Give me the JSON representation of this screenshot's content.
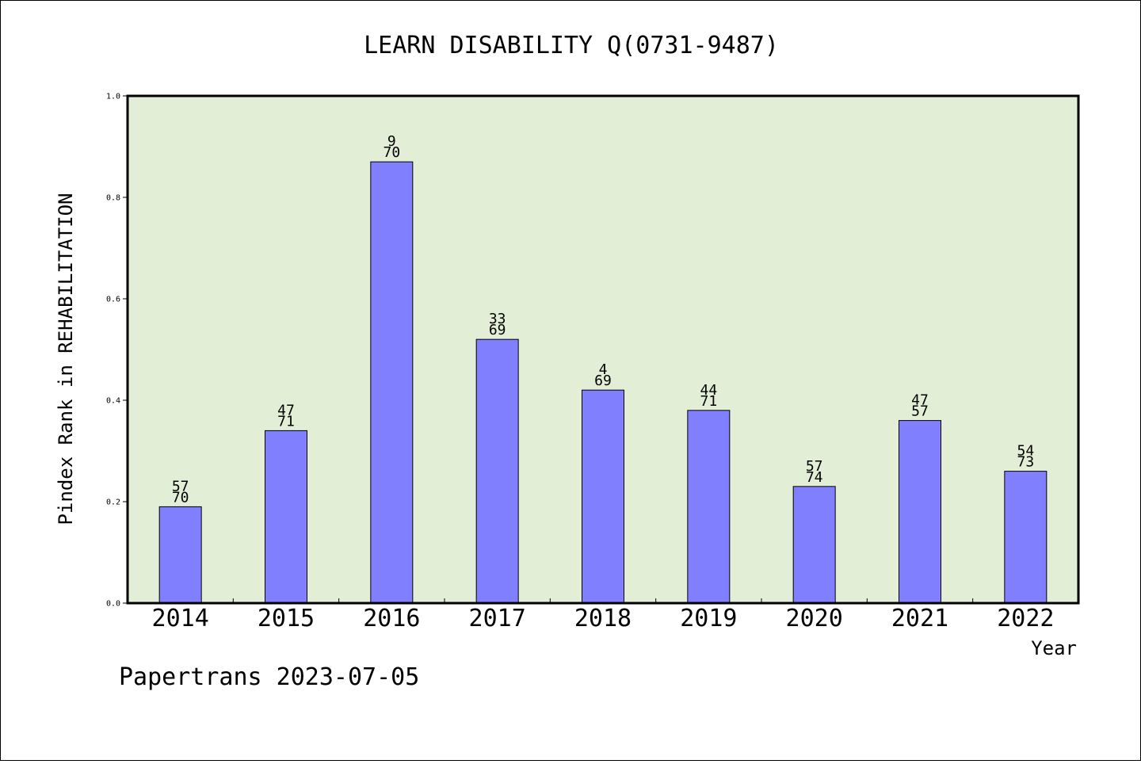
{
  "chart_data": {
    "type": "bar",
    "title": "LEARN DISABILITY Q(0731-9487)",
    "xlabel": "Year",
    "ylabel": "Pindex Rank in REHABILITATION",
    "categories": [
      "2014",
      "2015",
      "2016",
      "2017",
      "2018",
      "2019",
      "2020",
      "2021",
      "2022"
    ],
    "values": [
      0.19,
      0.34,
      0.87,
      0.52,
      0.42,
      0.38,
      0.23,
      0.36,
      0.26
    ],
    "rank_labels": [
      "57",
      "47",
      "9",
      "33",
      "4",
      "44",
      "57",
      "47",
      "54"
    ],
    "total_labels": [
      "70",
      "71",
      "70",
      "69",
      "69",
      "71",
      "74",
      "57",
      "73"
    ],
    "ylim": [
      0,
      1.0
    ],
    "yticks": [
      "0.0",
      "0.2",
      "0.4",
      "0.6",
      "0.8",
      "1.0"
    ],
    "grid": false,
    "colors": {
      "plot_bg": "#e2efd6",
      "bar": "#8080ff",
      "axis": "#000000"
    }
  },
  "footer": {
    "text": "Papertrans 2023-07-05"
  }
}
